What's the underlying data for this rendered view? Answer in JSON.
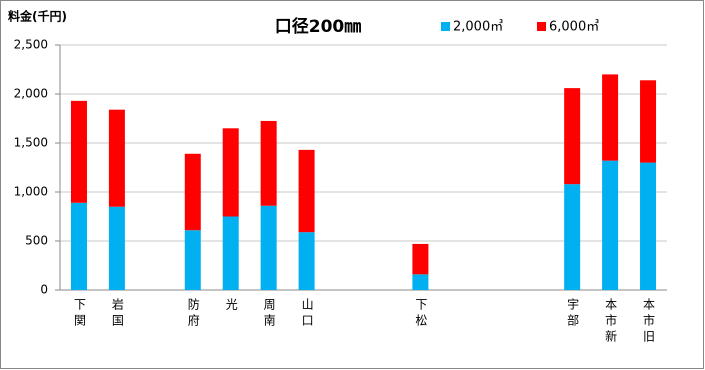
{
  "chart_data": {
    "type": "stacked_bar",
    "title": "口径200㎜",
    "y_label": "料金(千円)",
    "categories": [
      "下関",
      "岩国",
      null,
      "防府",
      "光",
      "周南",
      "山口",
      null,
      null,
      "下松",
      null,
      null,
      null,
      "宇部",
      "本市新",
      "本市旧"
    ],
    "series": [
      {
        "name": "2,000㎥",
        "color": "#00b0f0",
        "values": [
          890,
          850,
          null,
          610,
          750,
          860,
          590,
          null,
          null,
          160,
          null,
          null,
          null,
          1080,
          1320,
          1300
        ]
      },
      {
        "name": "6,000㎥",
        "color": "#ff0000",
        "values": [
          1040,
          990,
          null,
          780,
          900,
          865,
          840,
          null,
          null,
          310,
          null,
          null,
          null,
          980,
          880,
          840
        ]
      }
    ],
    "ylim": [
      0,
      2500
    ],
    "yticks": [
      0,
      500,
      {
        "value": 1000,
        "label": "1,000"
      },
      {
        "value": 1500,
        "label": "1,500"
      },
      {
        "value": 2000,
        "label": "2,000"
      },
      {
        "value": 2500,
        "label": "2,500"
      }
    ],
    "grid": true
  }
}
